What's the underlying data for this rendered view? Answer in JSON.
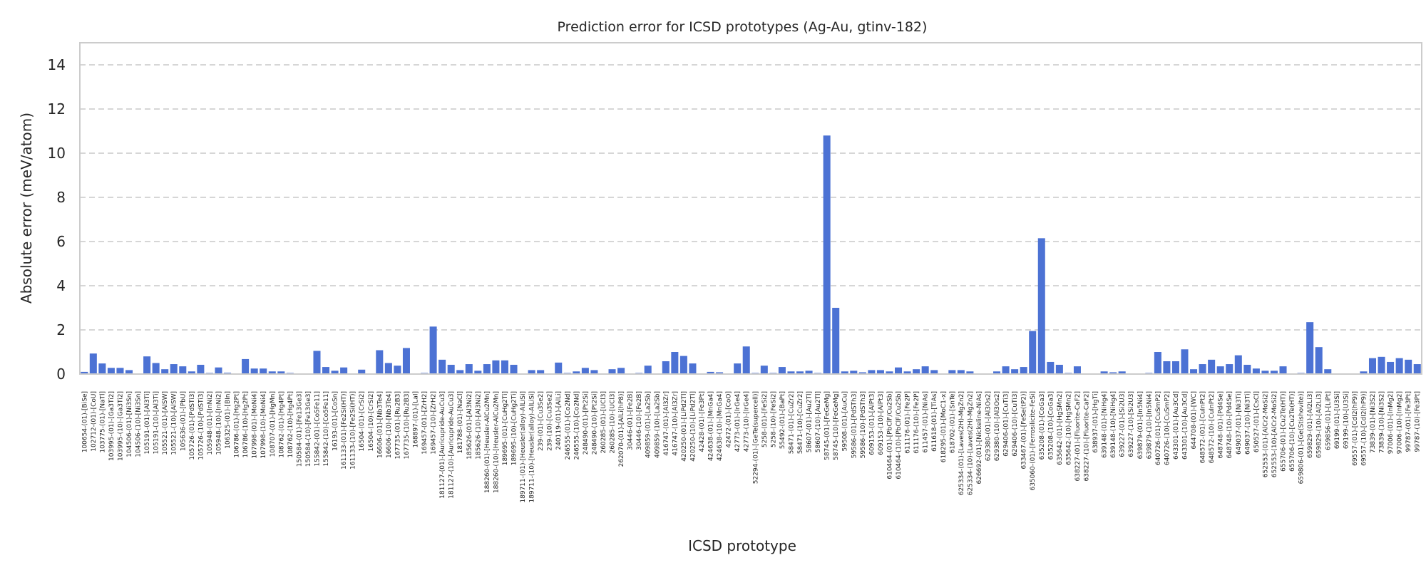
{
  "chart_data": {
    "type": "bar",
    "title": "Prediction error for ICSD prototypes (Ag-Au, gtinv-182)",
    "xlabel": "ICSD prototype",
    "ylabel": "Absolute error (meV/atom)",
    "ylim": [
      0,
      15
    ],
    "yticks": [
      "0",
      "2",
      "4",
      "6",
      "8",
      "10",
      "12",
      "14"
    ],
    "grid": "horizontal-dashed",
    "bar_color": "#4c72d4",
    "categories": [
      "100654-(01)-[BiSe]",
      "102712-(01)-[CoU]",
      "103775-(01)-[NaTl]",
      "103995-(01)-[Ga3Ti2]",
      "103995-(10)-[Ga3Ti2]",
      "104506-(01)-[Ni3Sn]",
      "104506-(10)-[Ni3Sn]",
      "105191-(01)-[Al3Ti]",
      "105191-(10)-[Al3Ti]",
      "105521-(01)-[AlSW]",
      "105521-(10)-[AlSW]",
      "105636-(01)-[PbU]",
      "105726-(01)-[PdSTi3]",
      "105726-(10)-[PdSTi3]",
      "105948-(01)-[InNi2]",
      "105948-(10)-[InNi2]",
      "106325-(01)-[BIn]",
      "106786-(01)-[Hg2Pt]",
      "106786-(10)-[Hg2Pt]",
      "107998-(01)-[MoNi4]",
      "107998-(10)-[MoNi4]",
      "108707-(01)-[HgMn]",
      "108762-(01)-[Hg4Pt]",
      "108762-(10)-[Hg4Pt]",
      "150584-(01)-[Fe13Ge3]",
      "150584-(10)-[Fe13Ge3]",
      "155842-(01)-[Co5Fe11]",
      "155842-(10)-[Co5Fe11]",
      "16193-(01)-[CoSn]",
      "161133-(01)-[Fe2Si(HT)]",
      "161133-(10)-[Fe2Si(HT)]",
      "16504-(01)-[CrSi2]",
      "16504-(10)-[CrSi2]",
      "16606-(01)-[Nb3Te4]",
      "16606-(10)-[Nb3Te4]",
      "167735-(01)-[Ru2B3]",
      "167735-(10)-[Ru2B3]",
      "168897-(01)-[LaI]",
      "169457-(01)-[ZrH2]",
      "169457-(10)-[ZrH2]",
      "181127-(01)-[Auricupride-AuCu3]",
      "181127-(10)-[Auricupride-AuCu3]",
      "181788-(01)-[NaCl]",
      "185626-(01)-[Al3Ni2]",
      "185626-(10)-[Al3Ni2]",
      "188260-(01)-[Heusler-AlCu2Mn]",
      "188260-(10)-[Heusler-AlCu2Mn]",
      "189695-(01)-[CuHg2Ti]",
      "189695-(10)-[CuHg2Ti]",
      "189711-(01)-[Heusler(alloy)-AlLiSi]",
      "189711-(10)-[Heusler(alloy)-AlLiSi]",
      "239-(01)-[Cu3Se2]",
      "239-(10)-[Cu3Se2]",
      "240119-(01)-[AlLi]",
      "246555-(01)-[Co2Nd]",
      "246555-(10)-[Co2Nd]",
      "248490-(01)-[Pt2Si]",
      "248490-(10)-[Pt2Si]",
      "260285-(01)-[UCl3]",
      "260285-(10)-[UCl3]",
      "262070-(01)-[AlLi(hP8)]",
      "30446-(01)-[Fe2B]",
      "30446-(10)-[Fe2B]",
      "409859-(01)-[La2Sb]",
      "409859-(10)-[La2Sb]",
      "416747-(01)-[Al3Zr]",
      "416747-(10)-[Al3Zr]",
      "420250-(01)-[LiPd2Tl]",
      "420250-(10)-[LiPd2Tl]",
      "42428-(01)-[Fe3Pt]",
      "424638-(01)-[MnGa4]",
      "424638-(10)-[MnGa4]",
      "42472-(01)-[CoO]",
      "42773-(01)-[IrGe4]",
      "42773-(10)-[IrGe4]",
      "52294-(01)-[GeTe(supercell)]",
      "5258-(01)-[FeSi2]",
      "5258-(10)-[FeSi2]",
      "55492-(01)-[BaPt]",
      "58471-(01)-[CuZr2]",
      "58471-(10)-[CuZr2]",
      "58607-(01)-[Au2Tl]",
      "58607-(10)-[Au2Tl]",
      "58745-(01)-[FeGeMg]",
      "58745-(10)-[FeGeMg]",
      "59508-(01)-[AuCu]",
      "59586-(01)-[PdSTh3]",
      "59586-(10)-[PdSTh3]",
      "609153-(01)-[AlPt3]",
      "609153-(10)-[AlPt3]",
      "610464-(01)-[PbClF/Cu2Sb]",
      "610464-(10)-[PbClF/Cu2Sb]",
      "611176-(01)-[Fe2P]",
      "611176-(10)-[Fe2P]",
      "611457-(01)-[NiAs]",
      "611618-(01)-[TiAs]",
      "618295-(01)-[MoC1-x]",
      "618702-(01)-[SnTe]",
      "625334-(01)-[Laves(2H)-MgZn2]",
      "625334-(10)-[Laves(2H)-MgZn2]",
      "626692-(01)-[Nickeline-NiAs]",
      "629380-(01)-[Al3Os2]",
      "629380-(10)-[Al3Os2]",
      "629406-(01)-[CuTi3]",
      "629406-(10)-[CuTi3]",
      "633467-(01)-[FeSe(tP2)]",
      "635060-(01)-[Ferrosilicite-FeSi]",
      "635208-(01)-[CoGa3]",
      "635208-(10)-[CoGa3]",
      "635642-(01)-[HgSMn2]",
      "635642-(10)-[HgSMn2]",
      "638227-(01)-[Fluorite-CaF2]",
      "638227-(10)-[Fluorite-CaF2]",
      "638937-(01)-[HgTi]",
      "639148-(01)-[NiHg4]",
      "639148-(10)-[NiHg4]",
      "639227-(01)-[Si2U3]",
      "639227-(10)-[Si2U3]",
      "639879-(01)-[In5Ni4]",
      "639879-(10)-[In5Ni4]",
      "640726-(01)-[CuSmP2]",
      "640726-(10)-[CuSmP2]",
      "643301-(01)-[Au3Cd]",
      "643301-(10)-[Au3Cd]",
      "644708-(01)-[WC]",
      "648572-(01)-[CuInPt2]",
      "648572-(10)-[CuInPt2]",
      "648748-(01)-[Pd4Se]",
      "648748-(10)-[Pd4Se]",
      "649037-(01)-[Ni3Ti]",
      "649037-(10)-[Ni3Ti]",
      "650527-(01)-[CsCl]",
      "652553-(01)-[AlCr2-MoSi2]",
      "652553-(10)-[AlCr2-MoSi2]",
      "655706-(01)-[Cu2Te(HT)]",
      "655706-(10)-[Cu2Te(HT)]",
      "659806-(01)-[Ge(Stishovite)]",
      "659829-(01)-[Al2Li3]",
      "659829-(10)-[Al2Li3]",
      "659856-(01)-[LiPt]",
      "69199-(01)-[U3Si]",
      "69199-(10)-[U3Si]",
      "69557-(01)-[CdI2(hP9)]",
      "69557-(10)-[CdI2(hP9)]",
      "73839-(01)-[Ni3S2]",
      "73839-(10)-[Ni3S2]",
      "97006-(01)-[InMg2]",
      "97006-(10)-[InMg2]",
      "99787-(01)-[Fe3Pt]",
      "99787-(10)-[Fe3Pt]"
    ],
    "values": [
      0.1,
      0.93,
      0.48,
      0.28,
      0.28,
      0.18,
      0.02,
      0.8,
      0.5,
      0.22,
      0.45,
      0.35,
      0.12,
      0.42,
      0.05,
      0.3,
      0.06,
      0.02,
      0.68,
      0.25,
      0.25,
      0.12,
      0.12,
      0.05,
      0.02,
      0.02,
      1.05,
      0.32,
      0.15,
      0.3,
      0.02,
      0.2,
      0.02,
      1.08,
      0.5,
      0.38,
      1.18,
      0.02,
      0.05,
      2.15,
      0.65,
      0.42,
      0.18,
      0.45,
      0.15,
      0.45,
      0.62,
      0.62,
      0.42,
      0.02,
      0.18,
      0.18,
      0.02,
      0.52,
      0.05,
      0.12,
      0.28,
      0.18,
      0.02,
      0.22,
      0.28,
      0.02,
      0.05,
      0.38,
      0.02,
      0.58,
      1.0,
      0.82,
      0.48,
      0.02,
      0.1,
      0.08,
      0.02,
      0.48,
      1.25,
      0.05,
      0.38,
      0.05,
      0.32,
      0.12,
      0.12,
      0.15,
      0.05,
      10.8,
      3.0,
      0.12,
      0.15,
      0.08,
      0.18,
      0.18,
      0.12,
      0.3,
      0.12,
      0.22,
      0.35,
      0.18,
      0.02,
      0.18,
      0.18,
      0.12,
      0.02,
      0.02,
      0.12,
      0.35,
      0.22,
      0.32,
      1.95,
      6.15,
      0.55,
      0.42,
      0.05,
      0.35,
      0.02,
      0.02,
      0.12,
      0.08,
      0.12,
      0.02,
      0.02,
      0.05,
      1.0,
      0.58,
      0.58,
      1.12,
      0.22,
      0.45,
      0.65,
      0.35,
      0.45,
      0.85,
      0.42,
      0.25,
      0.15,
      0.15,
      0.35,
      0.02,
      0.05,
      2.35,
      1.22,
      0.22,
      0.02,
      0.02,
      0.02,
      0.12,
      0.72,
      0.78,
      0.55,
      0.72,
      0.65,
      0.45
    ]
  }
}
